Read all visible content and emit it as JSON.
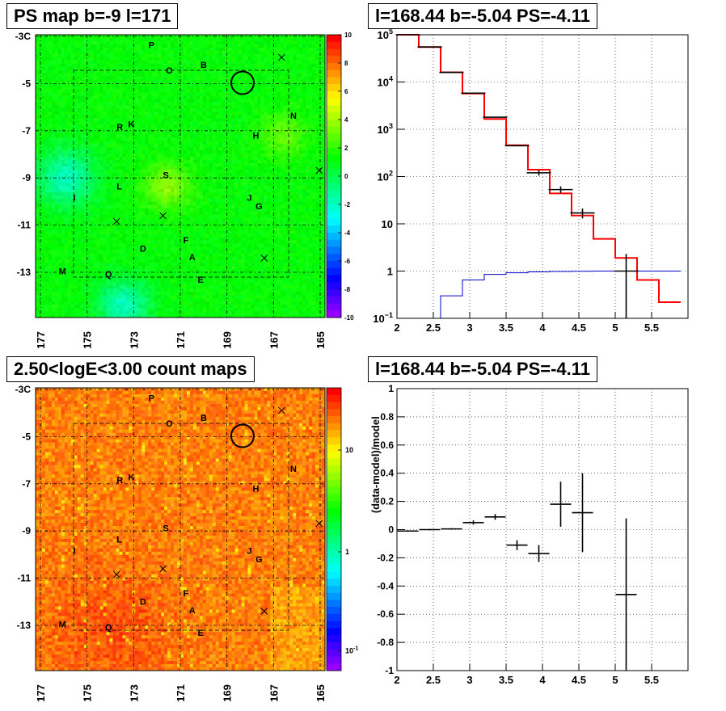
{
  "panels": {
    "ps_map_title": "PS map b=-9 l=171",
    "spectrum_title": "l=168.44 b=-5.04 PS=-4.11",
    "count_map_title": "2.50<logE<3.00 count maps",
    "residual_title": "l=168.44 b=-5.04 PS=-4.11"
  },
  "colors": {
    "data": "#000000",
    "model": "#ff0000",
    "background_model": "#0000cc",
    "grid": "#000000"
  },
  "chart_data": [
    {
      "type": "heatmap",
      "title": "PS map b=-9 l=171",
      "x_ticks": [
        "177",
        "175",
        "173",
        "171",
        "169",
        "167",
        "165"
      ],
      "y_ticks": [
        "-3C",
        "-5",
        "-7",
        "-9",
        "-11",
        "-13"
      ],
      "colorbar_ticks": [
        "10",
        "8",
        "6",
        "4",
        "2",
        "0",
        "-2",
        "-4",
        "-6",
        "-8",
        "-10"
      ],
      "colorbar_range": [
        -10,
        10
      ],
      "dominant_value": 0,
      "labels": [
        "P",
        "B",
        "O",
        "K",
        "R",
        "N",
        "H",
        "S",
        "L",
        "I",
        "J",
        "G",
        "F",
        "D",
        "A",
        "M",
        "Q",
        "E"
      ],
      "circle_marker": {
        "l": 168.44,
        "b": -5.04
      }
    },
    {
      "type": "line",
      "title": "l=168.44 b=-5.04 PS=-4.11",
      "xlim": [
        2,
        6
      ],
      "ylim": [
        0.1,
        100000
      ],
      "log_y": true,
      "grid": true,
      "x_ticks": [
        "2",
        "2.5",
        "3",
        "3.5",
        "4",
        "4.5",
        "5",
        "5.5"
      ],
      "y_ticks": [
        {
          "base": "10",
          "exp": "5"
        },
        {
          "base": "10",
          "exp": "4"
        },
        {
          "base": "10",
          "exp": "3"
        },
        {
          "base": "10",
          "exp": "2"
        },
        {
          "base": "10",
          "exp": ""
        },
        {
          "base": "1",
          "exp": ""
        },
        {
          "base": "10",
          "exp": "−1"
        }
      ],
      "model_bins": {
        "edges": [
          2.0,
          2.3,
          2.6,
          2.9,
          3.2,
          3.5,
          3.8,
          4.1,
          4.4,
          4.7,
          5.0,
          5.3,
          5.6,
          5.9
        ],
        "values": [
          100000,
          55000,
          16000,
          5700,
          1650,
          460,
          140,
          44,
          15,
          4.8,
          1.9,
          0.65,
          0.22
        ]
      },
      "background_bins": {
        "edges": [
          2.6,
          2.9,
          3.2,
          3.5,
          3.8,
          4.1,
          4.4,
          4.7,
          5.0,
          5.3,
          5.6,
          5.9
        ],
        "values": [
          0.3,
          0.65,
          0.85,
          0.92,
          0.96,
          0.98,
          0.99,
          1.0,
          1.0,
          1.0,
          1.0
        ]
      },
      "data_points": [
        {
          "x": 2.15,
          "y": 100000
        },
        {
          "x": 2.45,
          "y": 55000
        },
        {
          "x": 2.75,
          "y": 16000
        },
        {
          "x": 3.05,
          "y": 5800
        },
        {
          "x": 3.35,
          "y": 1800
        },
        {
          "x": 3.65,
          "y": 450
        },
        {
          "x": 3.95,
          "y": 120,
          "ylo": 105,
          "yhi": 135
        },
        {
          "x": 4.25,
          "y": 53,
          "ylo": 45,
          "yhi": 62
        },
        {
          "x": 4.55,
          "y": 17,
          "ylo": 13,
          "yhi": 21
        },
        {
          "x": 5.15,
          "y": 1.0,
          "ylo": 0.1,
          "yhi": 2.3
        }
      ]
    },
    {
      "type": "heatmap",
      "title": "2.50<logE<3.00 count maps",
      "x_ticks": [
        "177",
        "175",
        "173",
        "171",
        "169",
        "167",
        "165"
      ],
      "y_ticks": [
        "-3C",
        "-5",
        "-7",
        "-9",
        "-11",
        "-13"
      ],
      "colorbar_ticks": [
        {
          "base": "10",
          "exp": ""
        },
        {
          "base": "1",
          "exp": ""
        },
        {
          "base": "10",
          "exp": "-1"
        }
      ],
      "log_colorbar": true,
      "labels": [
        "P",
        "B",
        "O",
        "K",
        "R",
        "N",
        "H",
        "S",
        "L",
        "I",
        "J",
        "G",
        "F",
        "D",
        "A",
        "M",
        "Q",
        "E"
      ]
    },
    {
      "type": "scatter",
      "title": "l=168.44 b=-5.04 PS=-4.11",
      "ylabel": "(data-model)/model",
      "xlim": [
        2,
        6
      ],
      "ylim": [
        -1,
        1
      ],
      "grid": true,
      "x_ticks": [
        "2",
        "2.5",
        "3",
        "3.5",
        "4",
        "4.5",
        "5",
        "5.5"
      ],
      "y_ticks": [
        "1",
        "0.8",
        "0.6",
        "0.4",
        "0.2",
        "0",
        "-0.2",
        "-0.4",
        "-0.6",
        "-0.8",
        "-1"
      ],
      "points": [
        {
          "x": 2.15,
          "y": -0.01,
          "err": 0.005
        },
        {
          "x": 2.45,
          "y": 0.0,
          "err": 0.005
        },
        {
          "x": 2.75,
          "y": 0.005,
          "err": 0.005
        },
        {
          "x": 3.05,
          "y": 0.05,
          "err": 0.015
        },
        {
          "x": 3.35,
          "y": 0.09,
          "err": 0.02
        },
        {
          "x": 3.65,
          "y": -0.11,
          "err": 0.035
        },
        {
          "x": 3.95,
          "y": -0.17,
          "err": 0.06
        },
        {
          "x": 4.25,
          "y": 0.18,
          "err": 0.16
        },
        {
          "x": 4.55,
          "y": 0.12,
          "err": 0.28
        },
        {
          "x": 5.15,
          "y": -0.46,
          "err": 0.54
        }
      ]
    }
  ]
}
